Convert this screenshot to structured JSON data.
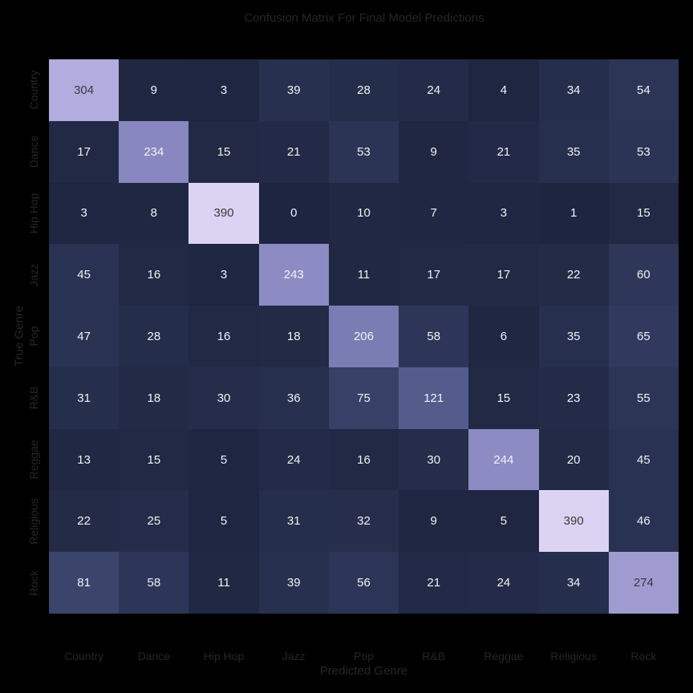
{
  "chart_data": {
    "type": "heatmap",
    "title": "Confusion Matrix For Final Model Predictions",
    "xlabel": "Predicted Genre",
    "ylabel": "True Genre",
    "x_categories": [
      "Country",
      "Dance",
      "Hip Hop",
      "Jazz",
      "Pop",
      "R&B",
      "Reggae",
      "Religious",
      "Rock"
    ],
    "y_categories": [
      "Country",
      "Dance",
      "Hip Hop",
      "Jazz",
      "Pop",
      "R&B",
      "Reggae",
      "Religious",
      "Rock"
    ],
    "values": [
      [
        304,
        9,
        3,
        39,
        28,
        24,
        4,
        34,
        54
      ],
      [
        17,
        234,
        15,
        21,
        53,
        9,
        21,
        35,
        53
      ],
      [
        3,
        8,
        390,
        0,
        10,
        7,
        3,
        1,
        15
      ],
      [
        45,
        16,
        3,
        243,
        11,
        17,
        17,
        22,
        60
      ],
      [
        47,
        28,
        16,
        18,
        206,
        58,
        6,
        35,
        65
      ],
      [
        31,
        18,
        30,
        36,
        75,
        121,
        15,
        23,
        55
      ],
      [
        13,
        15,
        5,
        24,
        16,
        30,
        244,
        20,
        45
      ],
      [
        22,
        25,
        5,
        31,
        32,
        9,
        5,
        390,
        46
      ],
      [
        81,
        58,
        11,
        39,
        56,
        21,
        24,
        34,
        274
      ]
    ],
    "value_range": [
      0,
      390
    ],
    "colormap": {
      "low": "#1e2540",
      "mid": "#525a8a",
      "high": "#dcd3f2"
    },
    "annotations": true,
    "colorbar": false,
    "grid": false
  }
}
